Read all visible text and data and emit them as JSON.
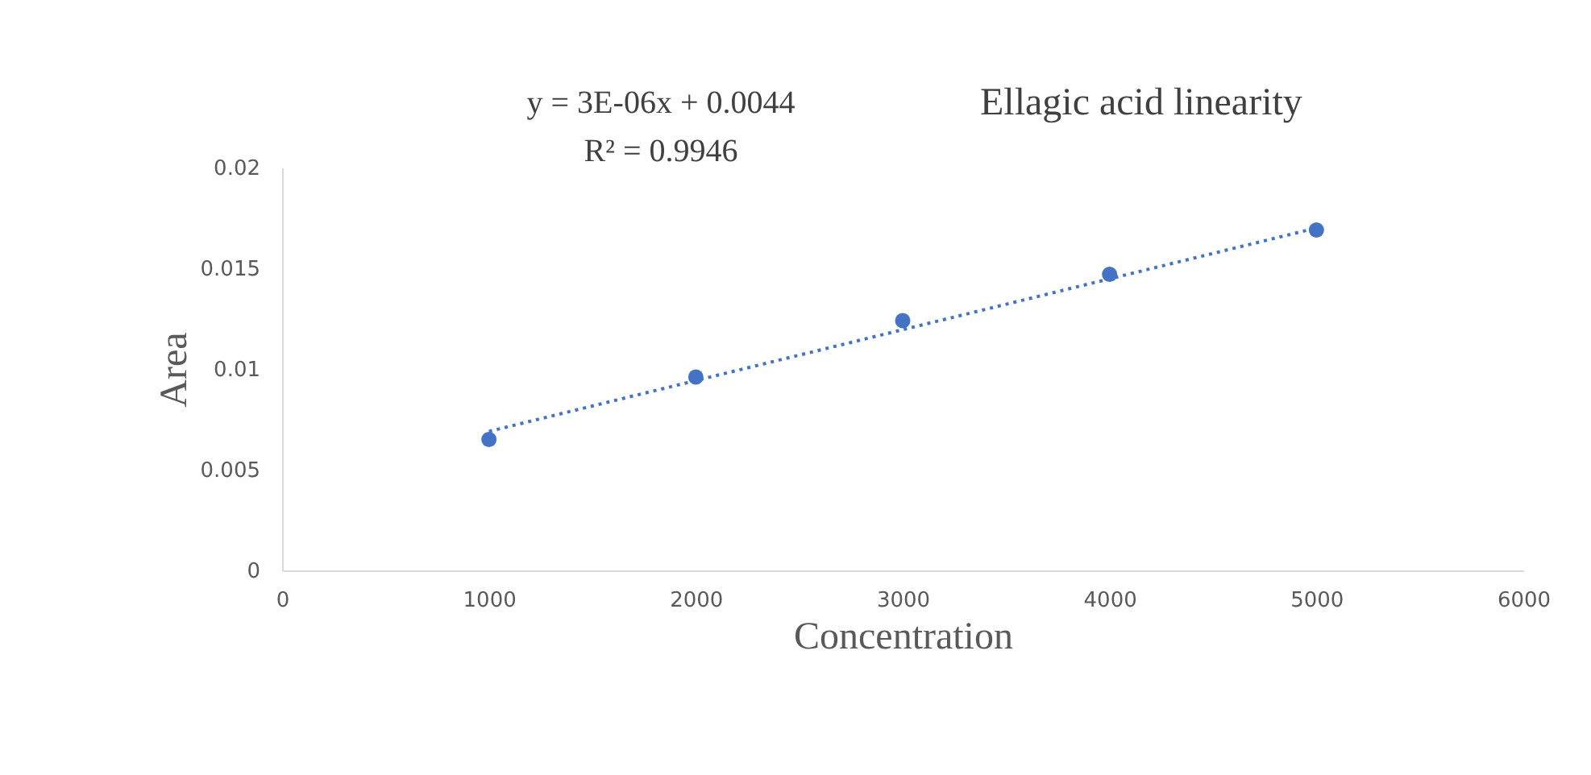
{
  "chart_data": {
    "type": "scatter",
    "title": "Ellagic acid linearity",
    "xlabel": "Concentration",
    "ylabel": "Area",
    "annotations": [
      "y = 3E-06x + 0.0044",
      "R² = 0.9946"
    ],
    "series": [
      {
        "color": "#4472c4",
        "marker": "circle",
        "x": [
          1000,
          2000,
          3000,
          4000,
          5000
        ],
        "values": [
          0.0065,
          0.0096,
          0.0124,
          0.0147,
          0.0169
        ]
      },
      {
        "type": "line",
        "color": "#4472c4",
        "line_style": "dotted",
        "marker": "none",
        "x": [
          1000,
          5000
        ],
        "values": [
          0.0069,
          0.017
        ]
      }
    ],
    "xlim": [
      0,
      6000
    ],
    "xticks": [
      0,
      1000,
      2000,
      3000,
      4000,
      5000,
      6000
    ],
    "ylim": [
      0,
      0.02
    ],
    "yticks": [
      0,
      0.005,
      0.01,
      0.015,
      0.02
    ],
    "grid": false,
    "legend": false
  }
}
